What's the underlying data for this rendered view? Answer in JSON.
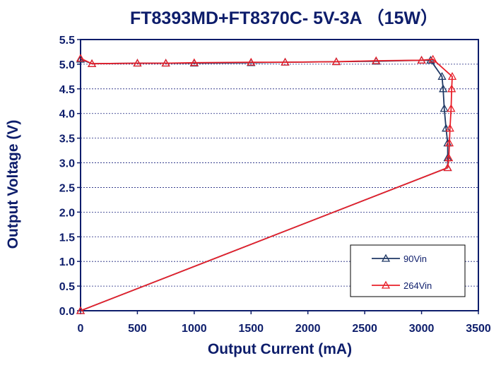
{
  "chart_data": {
    "type": "line",
    "title": "FT8393MD+FT8370C- 5V-3A （15W）",
    "xlabel": "Output Current (mA)",
    "ylabel": "Output Voltage (V)",
    "xlim": [
      0,
      3500
    ],
    "ylim": [
      0,
      5.5
    ],
    "xticks": [
      "0",
      "500",
      "1000",
      "1500",
      "2000",
      "2500",
      "3000",
      "3500"
    ],
    "yticks": [
      "0.0",
      "0.5",
      "1.0",
      "1.5",
      "2.0",
      "2.5",
      "3.0",
      "3.5",
      "4.0",
      "4.5",
      "5.0",
      "5.5"
    ],
    "grid": "horizontal dashed",
    "legend_position": "bottom-right",
    "series": [
      {
        "name": "90Vin",
        "color": "#1f3864",
        "marker": "triangle-open",
        "points": [
          [
            0,
            0.0
          ],
          [
            3230,
            2.9
          ],
          [
            3230,
            3.1
          ],
          [
            3230,
            3.4
          ],
          [
            3215,
            3.7
          ],
          [
            3200,
            4.1
          ],
          [
            3190,
            4.5
          ],
          [
            3180,
            4.75
          ],
          [
            3080,
            5.08
          ],
          [
            3000,
            5.08
          ],
          [
            2600,
            5.06
          ],
          [
            2250,
            5.05
          ],
          [
            1800,
            5.04
          ],
          [
            1500,
            5.03
          ],
          [
            1000,
            5.02
          ],
          [
            750,
            5.02
          ],
          [
            500,
            5.02
          ],
          [
            100,
            5.01
          ],
          [
            0,
            5.1
          ]
        ]
      },
      {
        "name": "264Vin",
        "color": "#e8202a",
        "marker": "triangle-open",
        "points": [
          [
            0,
            0.0
          ],
          [
            3230,
            2.9
          ],
          [
            3240,
            3.1
          ],
          [
            3245,
            3.4
          ],
          [
            3250,
            3.7
          ],
          [
            3260,
            4.1
          ],
          [
            3265,
            4.5
          ],
          [
            3270,
            4.75
          ],
          [
            3100,
            5.1
          ],
          [
            3000,
            5.08
          ],
          [
            2600,
            5.07
          ],
          [
            2250,
            5.05
          ],
          [
            1800,
            5.04
          ],
          [
            1500,
            5.04
          ],
          [
            1000,
            5.03
          ],
          [
            750,
            5.02
          ],
          [
            500,
            5.02
          ],
          [
            100,
            5.01
          ],
          [
            0,
            5.12
          ]
        ]
      }
    ]
  }
}
